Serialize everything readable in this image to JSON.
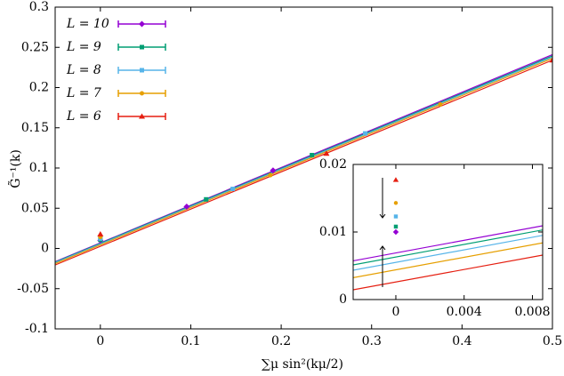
{
  "chart_data": {
    "type": "scatter",
    "x_label": "∑μ sin²(kμ/2)",
    "y_label": "G̃⁻¹(k)",
    "xlim": [
      -0.05,
      0.5
    ],
    "xticks": [
      0,
      0.1,
      0.2,
      0.3,
      0.4,
      0.5
    ],
    "ylim": [
      -0.1,
      0.3
    ],
    "yticks": [
      -0.1,
      -0.05,
      0,
      0.05,
      0.1,
      0.15,
      0.2,
      0.25,
      0.3
    ],
    "legend": "upper left",
    "series": [
      {
        "name": "L = 10",
        "color": "#9400d3",
        "marker": "diamond",
        "x": [
          0,
          0.0955,
          0.191
        ],
        "values": [
          0.01,
          0.052,
          0.097
        ],
        "fit": [
          0.0069,
          0.468
        ]
      },
      {
        "name": "L = 9",
        "color": "#009e73",
        "marker": "square",
        "x": [
          0,
          0.117,
          0.234
        ],
        "values": [
          0.0108,
          0.061,
          0.116
        ],
        "fit": [
          0.0063,
          0.466
        ]
      },
      {
        "name": "L = 8",
        "color": "#56b4e9",
        "marker": "square",
        "x": [
          0,
          0.1464,
          0.2929
        ],
        "values": [
          0.0123,
          0.074,
          0.143
        ],
        "fit": [
          0.0055,
          0.465
        ]
      },
      {
        "name": "L = 7",
        "color": "#e69f00",
        "marker": "circle",
        "x": [
          0,
          0.188,
          0.376
        ],
        "values": [
          0.0143,
          0.091,
          0.179
        ],
        "fit": [
          0.0044,
          0.464
        ]
      },
      {
        "name": "L = 6",
        "color": "#e51e10",
        "marker": "triangle",
        "x": [
          0,
          0.25,
          0.5
        ],
        "values": [
          0.0177,
          0.118,
          0.234
        ],
        "fit": [
          0.0026,
          0.463
        ]
      }
    ],
    "inset": {
      "xlim": [
        -0.0025,
        0.0086
      ],
      "xticks": [
        0,
        0.004,
        0.008
      ],
      "ylim": [
        0,
        0.02
      ],
      "yticks": [
        0,
        0.01,
        0.02
      ]
    }
  }
}
